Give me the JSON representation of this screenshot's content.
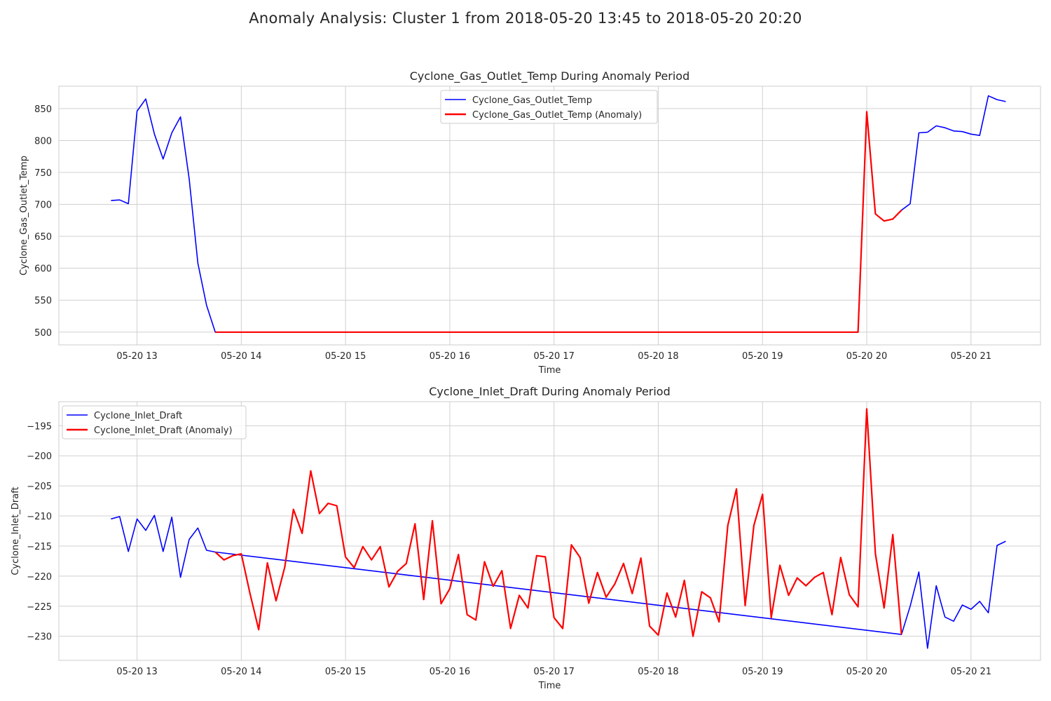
{
  "suptitle": "Anomaly Analysis: Cluster 1 from 2018-05-20 13:45 to 2018-05-20 20:20",
  "colors": {
    "normal": "#0000ff",
    "anomaly": "#ff0000",
    "grid": "#d0d0d0",
    "frame": "#cccccc",
    "text": "#262626"
  },
  "chart_data": [
    {
      "type": "line",
      "title": "Cyclone_Gas_Outlet_Temp During Anomaly Period",
      "xlabel": "Time",
      "ylabel": "Cyclone_Gas_Outlet_Temp",
      "xlim": [
        "2018-05-20 12:15",
        "2018-05-20 21:40"
      ],
      "ylim": [
        480,
        885
      ],
      "x_ticks": [
        "2018-05-20 13:00",
        "2018-05-20 14:00",
        "2018-05-20 15:00",
        "2018-05-20 16:00",
        "2018-05-20 17:00",
        "2018-05-20 18:00",
        "2018-05-20 19:00",
        "2018-05-20 20:00",
        "2018-05-20 21:00"
      ],
      "x_tick_labels": [
        "05-20 13",
        "05-20 14",
        "05-20 15",
        "05-20 16",
        "05-20 17",
        "05-20 18",
        "05-20 19",
        "05-20 20",
        "05-20 21"
      ],
      "y_ticks": [
        500,
        550,
        600,
        650,
        700,
        750,
        800,
        850
      ],
      "grid": true,
      "legend": "upper center",
      "series": [
        {
          "name": "Cyclone_Gas_Outlet_Temp",
          "color": "#0000ff",
          "x": [
            "2018-05-20 12:45",
            "2018-05-20 12:50",
            "2018-05-20 12:55",
            "2018-05-20 13:00",
            "2018-05-20 13:05",
            "2018-05-20 13:10",
            "2018-05-20 13:15",
            "2018-05-20 13:20",
            "2018-05-20 13:25",
            "2018-05-20 13:30",
            "2018-05-20 13:35",
            "2018-05-20 13:40",
            "2018-05-20 13:45",
            "2018-05-20 19:55",
            "2018-05-20 20:00",
            "2018-05-20 20:05",
            "2018-05-20 20:10",
            "2018-05-20 20:15",
            "2018-05-20 20:20",
            "2018-05-20 20:25",
            "2018-05-20 20:30",
            "2018-05-20 20:35",
            "2018-05-20 20:40",
            "2018-05-20 20:45",
            "2018-05-20 20:50",
            "2018-05-20 20:55",
            "2018-05-20 21:00",
            "2018-05-20 21:05",
            "2018-05-20 21:10",
            "2018-05-20 21:15",
            "2018-05-20 21:20"
          ],
          "y": [
            706,
            707,
            701,
            846,
            865,
            810,
            771,
            812,
            837,
            740,
            608,
            542,
            500,
            500,
            845,
            685,
            674,
            677,
            691,
            701,
            812,
            813,
            823,
            820,
            815,
            814,
            810,
            808,
            870,
            864,
            861
          ]
        },
        {
          "name": "Cyclone_Gas_Outlet_Temp (Anomaly)",
          "color": "#ff0000",
          "x": [
            "2018-05-20 13:45",
            "2018-05-20 19:55",
            "2018-05-20 20:00",
            "2018-05-20 20:05",
            "2018-05-20 20:10",
            "2018-05-20 20:15",
            "2018-05-20 20:20"
          ],
          "y": [
            500,
            500,
            845,
            685,
            674,
            677,
            691
          ]
        }
      ]
    },
    {
      "type": "line",
      "title": "Cyclone_Inlet_Draft During Anomaly Period",
      "xlabel": "Time",
      "ylabel": "Cyclone_Inlet_Draft",
      "xlim": [
        "2018-05-20 12:15",
        "2018-05-20 21:40"
      ],
      "ylim": [
        -234,
        -191
      ],
      "x_ticks": [
        "2018-05-20 13:00",
        "2018-05-20 14:00",
        "2018-05-20 15:00",
        "2018-05-20 16:00",
        "2018-05-20 17:00",
        "2018-05-20 18:00",
        "2018-05-20 19:00",
        "2018-05-20 20:00",
        "2018-05-20 21:00"
      ],
      "x_tick_labels": [
        "05-20 13",
        "05-20 14",
        "05-20 15",
        "05-20 16",
        "05-20 17",
        "05-20 18",
        "05-20 19",
        "05-20 20",
        "05-20 21"
      ],
      "y_ticks": [
        -195,
        -200,
        -205,
        -210,
        -215,
        -220,
        -225,
        -230
      ],
      "y_tick_labels": [
        "−195",
        "−200",
        "−205",
        "−210",
        "−215",
        "−220",
        "−225",
        "−230"
      ],
      "grid": true,
      "legend": "upper left",
      "series": [
        {
          "name": "Cyclone_Inlet_Draft",
          "color": "#0000ff",
          "x": [
            "2018-05-20 12:45",
            "2018-05-20 12:50",
            "2018-05-20 12:55",
            "2018-05-20 13:00",
            "2018-05-20 13:05",
            "2018-05-20 13:10",
            "2018-05-20 13:15",
            "2018-05-20 13:20",
            "2018-05-20 13:25",
            "2018-05-20 13:30",
            "2018-05-20 13:35",
            "2018-05-20 13:40",
            "2018-05-20 13:45",
            "2018-05-20 20:20",
            "2018-05-20 20:25",
            "2018-05-20 20:30",
            "2018-05-20 20:35",
            "2018-05-20 20:40",
            "2018-05-20 20:45",
            "2018-05-20 20:50",
            "2018-05-20 20:55",
            "2018-05-20 21:00",
            "2018-05-20 21:05",
            "2018-05-20 21:10",
            "2018-05-20 21:15",
            "2018-05-20 21:20"
          ],
          "y": [
            -210.5,
            -210.1,
            -215.9,
            -210.5,
            -212.4,
            -209.9,
            -215.9,
            -210.2,
            -220.2,
            -213.9,
            -212.0,
            -215.7,
            -216.0,
            -229.7,
            -225.0,
            -219.3,
            -232.0,
            -221.6,
            -226.8,
            -227.5,
            -224.8,
            -225.5,
            -224.2,
            -226.1,
            -214.9,
            -214.2
          ]
        },
        {
          "name": "Cyclone_Inlet_Draft (Anomaly)",
          "color": "#ff0000",
          "x": [
            "2018-05-20 13:45",
            "2018-05-20 13:50",
            "2018-05-20 13:55",
            "2018-05-20 14:00",
            "2018-05-20 14:05",
            "2018-05-20 14:10",
            "2018-05-20 14:15",
            "2018-05-20 14:20",
            "2018-05-20 14:25",
            "2018-05-20 14:30",
            "2018-05-20 14:35",
            "2018-05-20 14:40",
            "2018-05-20 14:45",
            "2018-05-20 14:50",
            "2018-05-20 14:55",
            "2018-05-20 15:00",
            "2018-05-20 15:05",
            "2018-05-20 15:10",
            "2018-05-20 15:15",
            "2018-05-20 15:20",
            "2018-05-20 15:25",
            "2018-05-20 15:30",
            "2018-05-20 15:35",
            "2018-05-20 15:40",
            "2018-05-20 15:45",
            "2018-05-20 15:50",
            "2018-05-20 15:55",
            "2018-05-20 16:00",
            "2018-05-20 16:05",
            "2018-05-20 16:10",
            "2018-05-20 16:15",
            "2018-05-20 16:20",
            "2018-05-20 16:25",
            "2018-05-20 16:30",
            "2018-05-20 16:35",
            "2018-05-20 16:40",
            "2018-05-20 16:45",
            "2018-05-20 16:50",
            "2018-05-20 16:55",
            "2018-05-20 17:00",
            "2018-05-20 17:05",
            "2018-05-20 17:10",
            "2018-05-20 17:15",
            "2018-05-20 17:20",
            "2018-05-20 17:25",
            "2018-05-20 17:30",
            "2018-05-20 17:35",
            "2018-05-20 17:40",
            "2018-05-20 17:45",
            "2018-05-20 17:50",
            "2018-05-20 17:55",
            "2018-05-20 18:00",
            "2018-05-20 18:05",
            "2018-05-20 18:10",
            "2018-05-20 18:15",
            "2018-05-20 18:20",
            "2018-05-20 18:25",
            "2018-05-20 18:30",
            "2018-05-20 18:35",
            "2018-05-20 18:40",
            "2018-05-20 18:45",
            "2018-05-20 18:50",
            "2018-05-20 18:55",
            "2018-05-20 19:00",
            "2018-05-20 19:05",
            "2018-05-20 19:10",
            "2018-05-20 19:15",
            "2018-05-20 19:20",
            "2018-05-20 19:25",
            "2018-05-20 19:30",
            "2018-05-20 19:35",
            "2018-05-20 19:40",
            "2018-05-20 19:45",
            "2018-05-20 19:50",
            "2018-05-20 19:55",
            "2018-05-20 20:00",
            "2018-05-20 20:05",
            "2018-05-20 20:10",
            "2018-05-20 20:15",
            "2018-05-20 20:20"
          ],
          "y": [
            -216.0,
            -217.3,
            -216.6,
            -216.3,
            -222.9,
            -228.9,
            -217.8,
            -224.1,
            -218.5,
            -208.9,
            -212.9,
            -202.5,
            -209.6,
            -207.9,
            -208.3,
            -216.8,
            -218.6,
            -215.1,
            -217.3,
            -215.1,
            -221.8,
            -219.2,
            -217.9,
            -211.3,
            -223.9,
            -210.8,
            -224.6,
            -222.1,
            -216.4,
            -226.4,
            -227.3,
            -217.6,
            -221.7,
            -219.1,
            -228.7,
            -223.2,
            -225.3,
            -216.6,
            -216.8,
            -226.9,
            -228.7,
            -214.8,
            -216.9,
            -224.5,
            -219.4,
            -223.5,
            -221.3,
            -217.9,
            -222.9,
            -217.0,
            -228.3,
            -229.8,
            -222.8,
            -226.8,
            -220.7,
            -230.0,
            -222.6,
            -223.6,
            -227.6,
            -211.6,
            -205.5,
            -224.9,
            -211.6,
            -206.4,
            -226.9,
            -218.2,
            -223.2,
            -220.3,
            -221.6,
            -220.2,
            -219.4,
            -226.4,
            -216.9,
            -223.1,
            -225.1,
            -192.2,
            -216.3,
            -225.3,
            -213.1,
            -229.7
          ]
        }
      ]
    }
  ]
}
